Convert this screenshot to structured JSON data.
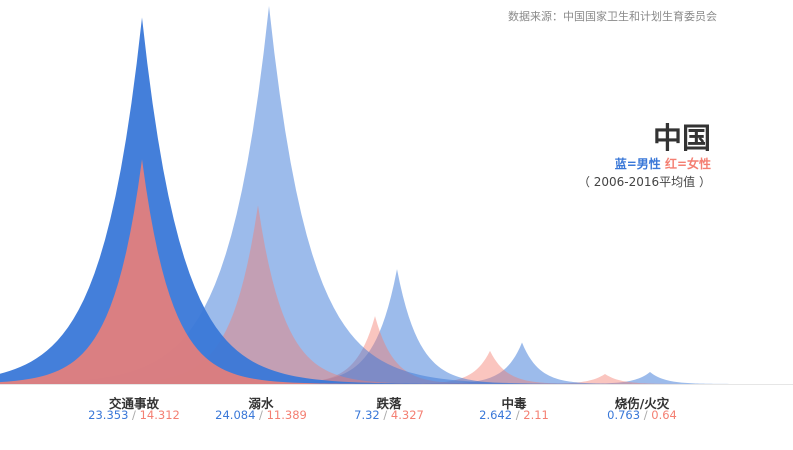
{
  "source": "数据来源：中国国家卫生和计划生育委员会",
  "title": "中国",
  "legend": {
    "male_label": "蓝=男性",
    "female_label": "红=女性"
  },
  "note": "（ 2006-2016平均值 ）",
  "colors": {
    "male": "#3a78d8",
    "female": "#f47f72",
    "separator": "#aaaaaa"
  },
  "chart_data": {
    "type": "area",
    "categories": [
      "交通事故",
      "溺水",
      "跌落",
      "中毒",
      "烧伤/火灾"
    ],
    "series": [
      {
        "name": "男性",
        "values": [
          23.353,
          24.084,
          7.32,
          2.642,
          0.763
        ]
      },
      {
        "name": "女性",
        "values": [
          14.312,
          11.389,
          4.327,
          2.11,
          0.64
        ]
      }
    ],
    "ylim": [
      0,
      24.084
    ],
    "grid": false
  }
}
